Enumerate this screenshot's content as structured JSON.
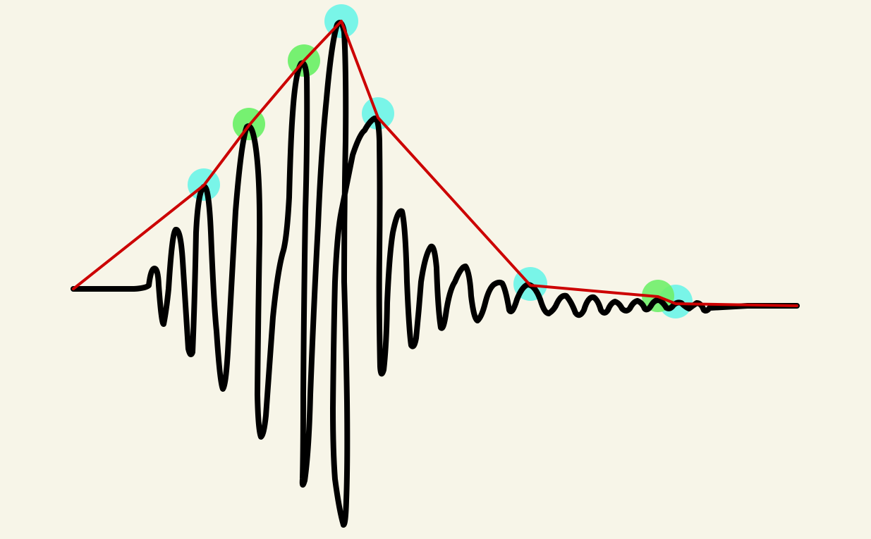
{
  "colors": {
    "background": "#f7f5e8",
    "waveform": "#000000",
    "envelope": "#cc0000",
    "marker_cyan": "#72f4e8",
    "marker_green": "#6ff06a"
  },
  "waveform": {
    "description_icon": "sketch-waveform"
  },
  "markers": [
    {
      "color": "cyan"
    },
    {
      "color": "green"
    },
    {
      "color": "green"
    },
    {
      "color": "cyan"
    },
    {
      "color": "cyan"
    },
    {
      "color": "cyan"
    },
    {
      "color": "green"
    },
    {
      "color": "cyan"
    }
  ]
}
